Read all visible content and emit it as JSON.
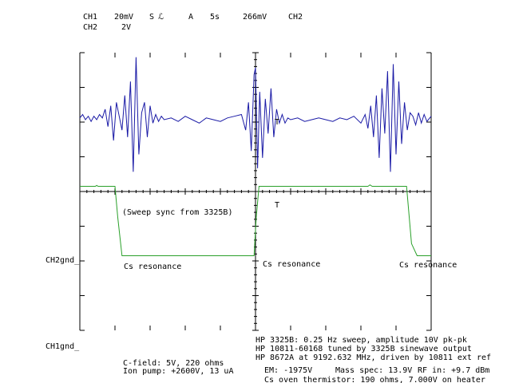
{
  "header": {
    "ch1_label": "CH1",
    "ch1_scale": "20mV",
    "trigger_mode": "S",
    "trigger_symbol": "ℒ",
    "coupling": "A",
    "timebase": "5s",
    "trigger_level": "266mV",
    "trigger_source": "CH2",
    "ch2_label": "CH2",
    "ch2_scale": "2V"
  },
  "markers": {
    "ch2_ground": "CH2gnd_",
    "ch1_ground": "CH1gnd_"
  },
  "annotations": {
    "sweep_sync": "(Sweep sync from 3325B)",
    "resonance_1": "Cs resonance",
    "resonance_2": "Cs resonance",
    "resonance_3": "Cs resonance"
  },
  "notes": {
    "left_line_1": "C-field: 5V, 220 ohms",
    "left_line_2": "Ion pump: +2600V, 13 uA",
    "right_line_1": "HP 3325B: 0.25 Hz sweep, amplitude 10V pk-pk",
    "right_line_2": "HP 10811-60168 tuned by 3325B sinewave output",
    "right_line_3": "HP 8672A at 9192.632 MHz, driven by 10811 ext ref",
    "status_em": "EM: -1975V",
    "status_mass": "Mass spec: 13.9V",
    "status_rf": "RF in: +9.7 dBm",
    "status_oven": "Cs oven thermistor: 190 ohms, 7.000V on heater"
  },
  "colors": {
    "ch1_trace": "#1a1aa6",
    "ch2_trace": "#2aa02a",
    "grid": "#000000"
  },
  "chart_data": {
    "type": "line",
    "x_unit": "s",
    "xlim": [
      0,
      50
    ],
    "grid": true,
    "series": [
      {
        "name": "CH1",
        "unit": "mV",
        "x": [
          0,
          0.4,
          0.8,
          1.2,
          1.6,
          2,
          2.4,
          2.8,
          3.2,
          3.6,
          4,
          4.4,
          4.8,
          5.2,
          5.6,
          6,
          6.4,
          6.8,
          7.2,
          7.6,
          8,
          8.4,
          8.8,
          9.2,
          9.6,
          10,
          10.4,
          10.8,
          11.2,
          11.6,
          12,
          13,
          14,
          15,
          16,
          17,
          18,
          19,
          20,
          21,
          22,
          23,
          23.6,
          24,
          24.4,
          24.8,
          25,
          25.3,
          25.6,
          26,
          26.4,
          26.8,
          27.2,
          27.6,
          28,
          28.4,
          28.8,
          29.2,
          29.6,
          30,
          31,
          32,
          33,
          34,
          35,
          36,
          37,
          38,
          39,
          40,
          40.6,
          41,
          41.4,
          41.8,
          42.2,
          42.6,
          43,
          43.4,
          43.8,
          44.2,
          44.6,
          45,
          45.4,
          45.8,
          46.2,
          46.6,
          47,
          47.4,
          47.8,
          48.2,
          48.6,
          49,
          49.4,
          50
        ],
        "values": [
          1,
          3,
          0,
          2,
          -1,
          2,
          0,
          3,
          1,
          6,
          -4,
          8,
          -12,
          10,
          2,
          -6,
          14,
          -10,
          22,
          -30,
          36,
          -20,
          4,
          10,
          -10,
          8,
          -2,
          3,
          -1,
          2,
          0,
          1,
          -1,
          2,
          0,
          -2,
          1,
          0,
          -1,
          1,
          2,
          3,
          -6,
          10,
          -18,
          26,
          30,
          -28,
          16,
          -22,
          12,
          -8,
          18,
          -10,
          6,
          -2,
          3,
          -2,
          1,
          0,
          1,
          -1,
          0,
          1,
          0,
          -1,
          1,
          0,
          2,
          -2,
          3,
          -5,
          8,
          -10,
          14,
          -22,
          18,
          -8,
          28,
          -30,
          32,
          -20,
          22,
          -14,
          10,
          -6,
          4,
          2,
          -3,
          4,
          -2,
          3,
          -1,
          2
        ]
      },
      {
        "name": "CH2",
        "unit": "V",
        "x": [
          0,
          2.2,
          2.4,
          2.6,
          3,
          5,
          5.4,
          6,
          10,
          20,
          24.8,
          25.1,
          25.5,
          26,
          30,
          40,
          41,
          41.3,
          41.6,
          45,
          46.5,
          47.2,
          48,
          50
        ],
        "values": [
          4.3,
          4.3,
          4.35,
          4.3,
          4.3,
          4.3,
          2.5,
          0.3,
          0.3,
          0.3,
          0.3,
          2.5,
          4.3,
          4.3,
          4.3,
          4.3,
          4.3,
          4.38,
          4.3,
          4.3,
          4.3,
          1.0,
          0.3,
          0.3
        ]
      }
    ]
  }
}
